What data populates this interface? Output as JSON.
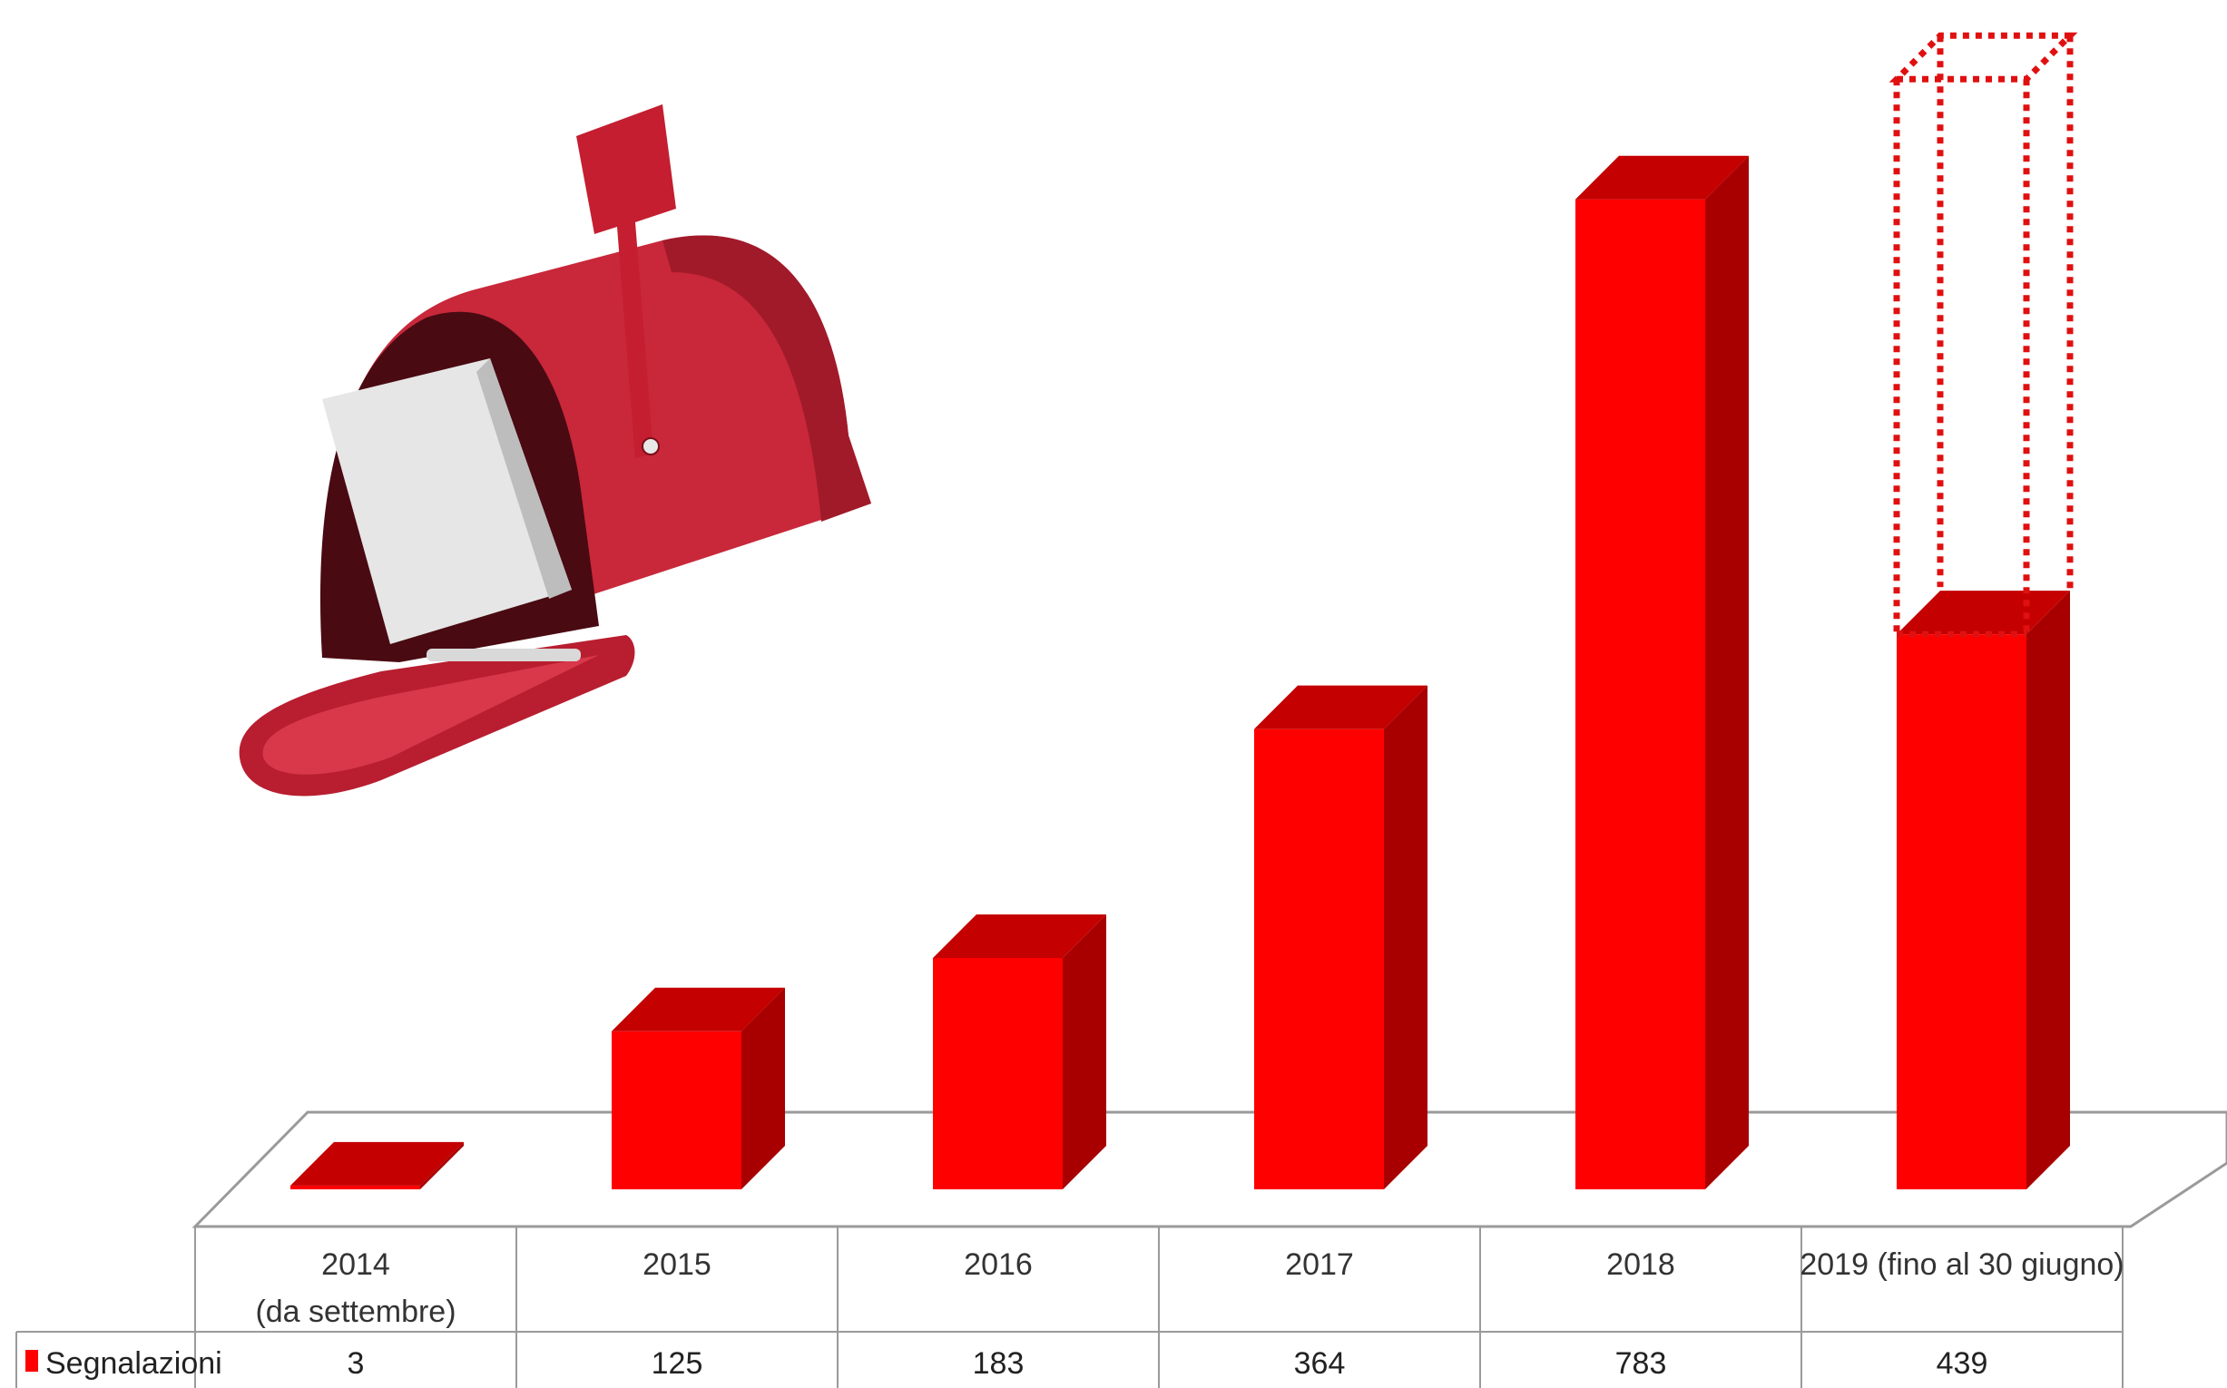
{
  "chart_data": {
    "type": "bar",
    "categories": [
      "2014\n(da settembre)",
      "2015",
      "2016",
      "2017",
      "2018",
      "2019 (fino al 30 giugno)"
    ],
    "series": [
      {
        "name": "Segnalazioni",
        "values": [
          3,
          125,
          183,
          364,
          783,
          439
        ]
      }
    ],
    "projection": {
      "category_index": 5,
      "value": 878
    },
    "ylim": [
      0,
      800
    ],
    "grid": false,
    "legend": "data-table-left",
    "colors": {
      "bar_front": "#ff0000",
      "bar_top": "#c40000",
      "bar_side": "#a80000",
      "projection": "#e01010",
      "mailbox": "#c8283a"
    },
    "decoration": "mailbox-icon"
  }
}
